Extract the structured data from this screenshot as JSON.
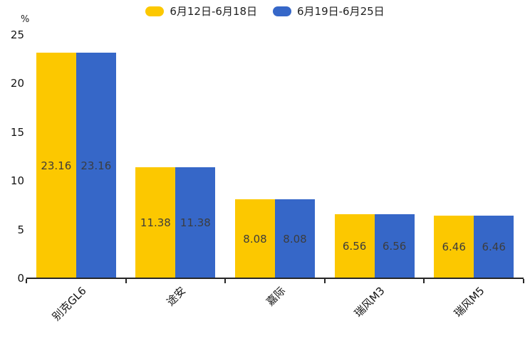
{
  "chart_data": {
    "type": "bar",
    "title": "",
    "xlabel": "",
    "ylabel": "%",
    "ylim": [
      0,
      25
    ],
    "yticks": [
      0,
      5,
      10,
      15,
      20,
      25
    ],
    "grid": false,
    "legend_position": "top",
    "value_labels": true,
    "categories": [
      "别克GL6",
      "途安",
      "嘉际",
      "瑞风M3",
      "瑞风M5"
    ],
    "series": [
      {
        "name": "6月12日-6月18日",
        "color": "#FCC800",
        "values": [
          23.16,
          11.38,
          8.08,
          6.56,
          6.46
        ]
      },
      {
        "name": "6月19日-6月25日",
        "color": "#3667C8",
        "values": [
          23.16,
          11.38,
          8.08,
          6.56,
          6.46
        ]
      }
    ],
    "colors": {
      "background": "#ffffff",
      "axis": "#262626",
      "tick_text": "#141414",
      "value_text": "#3d3d3d"
    }
  }
}
